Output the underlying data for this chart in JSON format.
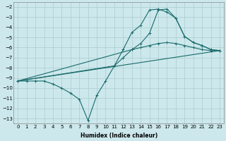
{
  "title": "",
  "xlabel": "Humidex (Indice chaleur)",
  "ylabel": "",
  "background_color": "#cce8ec",
  "grid_color": "#aacccc",
  "line_color": "#1a6b6b",
  "xlim": [
    -0.5,
    23.5
  ],
  "ylim": [
    -13.5,
    -1.5
  ],
  "xticks": [
    0,
    1,
    2,
    3,
    4,
    5,
    6,
    7,
    8,
    9,
    10,
    11,
    12,
    13,
    14,
    15,
    16,
    17,
    18,
    19,
    20,
    21,
    22,
    23
  ],
  "yticks": [
    -2,
    -3,
    -4,
    -5,
    -6,
    -7,
    -8,
    -9,
    -10,
    -11,
    -12,
    -13
  ],
  "lines": [
    {
      "x": [
        0,
        1,
        2,
        3,
        4,
        5,
        6,
        7,
        8,
        9,
        10,
        11,
        12,
        13,
        14,
        15,
        16,
        17,
        18,
        19,
        20,
        21,
        22,
        23
      ],
      "y": [
        -9.3,
        -9.3,
        -9.3,
        -9.3,
        -9.6,
        -10.0,
        -10.5,
        -11.1,
        -13.2,
        -10.7,
        -9.3,
        -7.8,
        -6.2,
        -4.5,
        -3.8,
        -2.3,
        -2.2,
        -2.5,
        -3.1,
        -4.9,
        -5.5,
        -5.8,
        -6.2,
        -6.3
      ]
    },
    {
      "x": [
        0,
        23
      ],
      "y": [
        -9.3,
        -6.3
      ]
    },
    {
      "x": [
        0,
        13,
        14,
        15,
        16,
        17,
        18,
        19,
        20,
        21,
        22,
        23
      ],
      "y": [
        -9.3,
        -6.2,
        -5.6,
        -4.6,
        -2.3,
        -2.2,
        -3.1,
        -4.9,
        -5.5,
        -5.8,
        -6.2,
        -6.3
      ]
    },
    {
      "x": [
        0,
        11,
        12,
        13,
        14,
        15,
        16,
        17,
        18,
        19,
        20,
        21,
        22,
        23
      ],
      "y": [
        -9.3,
        -7.8,
        -7.0,
        -6.2,
        -6.0,
        -5.8,
        -5.6,
        -5.5,
        -5.6,
        -5.8,
        -6.0,
        -6.2,
        -6.3,
        -6.3
      ]
    }
  ]
}
